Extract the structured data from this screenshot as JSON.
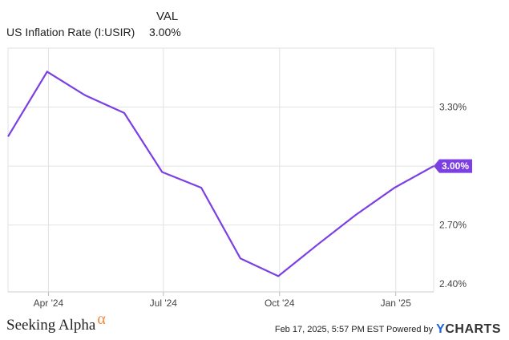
{
  "legend": {
    "col_header": "VAL",
    "series_name": "US Inflation Rate (I:USIR)",
    "series_value": "3.00%"
  },
  "chart_data": {
    "type": "line",
    "x": [
      "2024-02-29",
      "2024-03-31",
      "2024-04-30",
      "2024-05-31",
      "2024-06-30",
      "2024-07-31",
      "2024-08-31",
      "2024-09-30",
      "2024-10-31",
      "2024-11-30",
      "2024-12-31",
      "2025-01-31"
    ],
    "series": [
      {
        "name": "US Inflation Rate (I:USIR)",
        "values": [
          3.15,
          3.48,
          3.36,
          3.27,
          2.97,
          2.89,
          2.53,
          2.44,
          2.6,
          2.75,
          2.89,
          3.0
        ],
        "color": "#7b3fe4"
      }
    ],
    "y_ticks": [
      "3.30%",
      "2.70%",
      "2.40%"
    ],
    "y_tick_values": [
      3.3,
      2.7,
      2.4
    ],
    "x_ticks": [
      "Apr '24",
      "Jul '24",
      "Oct '24",
      "Jan '25"
    ],
    "x_tick_dates": [
      "2024-04-01",
      "2024-07-01",
      "2024-10-01",
      "2025-01-01"
    ],
    "ylim": [
      2.36,
      3.6
    ],
    "last_value_label": "3.00%",
    "grid": true
  },
  "footer": {
    "brand": "Seeking Alpha",
    "brand_symbol": "α",
    "timestamp": "Feb 17, 2025, 5:57 PM EST  Powered by",
    "ycharts_y": "Y",
    "ycharts_rest": "CHARTS"
  }
}
